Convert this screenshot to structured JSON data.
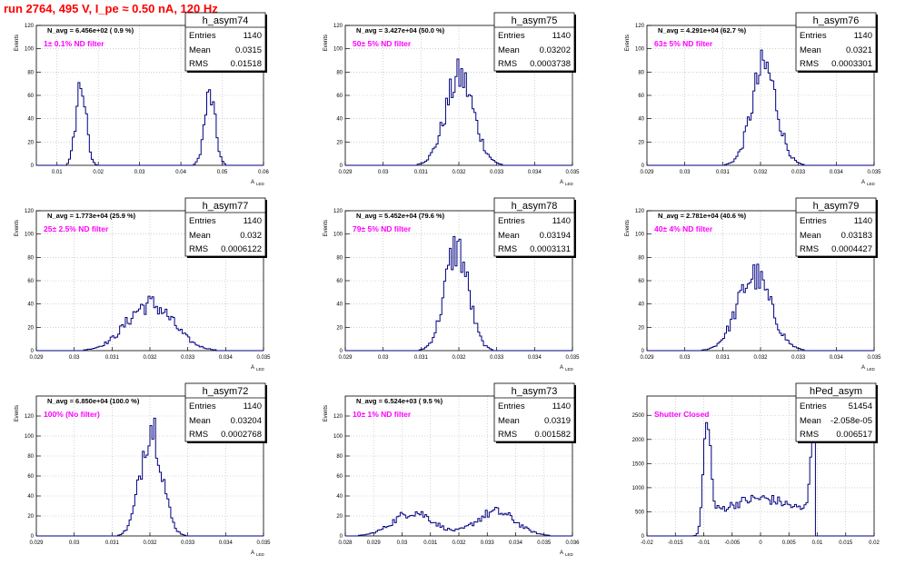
{
  "title": "run 2764,   495 V, I_pe ≈ 0.50 nA, 120 Hz",
  "colors": {
    "hist": "#000080",
    "magenta": "#ff00ff",
    "title": "#ff0000",
    "grid": "#b4b4b4"
  },
  "stats_labels": {
    "entries": "Entries",
    "mean": "Mean",
    "rms": "RMS"
  },
  "chart_data": [
    {
      "type": "histogram",
      "name": "h_asym74",
      "nlabel": "N_avg = 6.456e+02 ( 0.9 %)",
      "filter": "1± 0.1% ND filter",
      "ylabel": "Events",
      "xlabel": "A",
      "xlabel_sub": "LED",
      "xlim": [
        0.005,
        0.06
      ],
      "ylim": [
        0,
        120
      ],
      "xticks": [
        0.01,
        0.02,
        0.03,
        0.04,
        0.05,
        0.06
      ],
      "xticklabels": [
        "0.01",
        "0.02",
        "0.03",
        "0.04",
        "0.05",
        "0.06"
      ],
      "yticks": [
        0,
        20,
        40,
        60,
        80,
        100,
        120
      ],
      "stats": {
        "entries": "1140",
        "mean": "0.0315",
        "rms": "0.01518"
      },
      "peaks": [
        {
          "mu": 0.0158,
          "sigma": 0.0012,
          "amp": 70
        },
        {
          "mu": 0.047,
          "sigma": 0.0013,
          "amp": 60
        }
      ],
      "bins": 120
    },
    {
      "type": "histogram",
      "name": "h_asym75",
      "nlabel": "N_avg = 3.427e+04 (50.0 %)",
      "filter": "50± 5% ND filter",
      "ylabel": "Events",
      "xlabel": "A",
      "xlabel_sub": "LED",
      "xlim": [
        0.029,
        0.035
      ],
      "ylim": [
        0,
        120
      ],
      "xticks": [
        0.029,
        0.03,
        0.031,
        0.032,
        0.033,
        0.034,
        0.035
      ],
      "xticklabels": [
        "0.029",
        "0.03",
        "0.031",
        "0.032",
        "0.033",
        "0.034",
        "0.035"
      ],
      "yticks": [
        0,
        20,
        40,
        60,
        80,
        100,
        120
      ],
      "stats": {
        "entries": "1140",
        "mean": "0.03202",
        "rms": "0.0003738"
      },
      "peaks": [
        {
          "mu": 0.03202,
          "sigma": 0.00037,
          "amp": 76
        }
      ],
      "bins": 120
    },
    {
      "type": "histogram",
      "name": "h_asym76",
      "nlabel": "N_avg = 4.291e+04 (62.7 %)",
      "filter": "63± 5% ND filter",
      "ylabel": "Events",
      "xlabel": "A",
      "xlabel_sub": "LED",
      "xlim": [
        0.029,
        0.035
      ],
      "ylim": [
        0,
        120
      ],
      "xticks": [
        0.029,
        0.03,
        0.031,
        0.032,
        0.033,
        0.034,
        0.035
      ],
      "xticklabels": [
        "0.029",
        "0.03",
        "0.031",
        "0.032",
        "0.033",
        "0.034",
        "0.035"
      ],
      "yticks": [
        0,
        20,
        40,
        60,
        80,
        100,
        120
      ],
      "stats": {
        "entries": "1140",
        "mean": "0.0321",
        "rms": "0.0003301"
      },
      "peaks": [
        {
          "mu": 0.0321,
          "sigma": 0.00033,
          "amp": 84
        }
      ],
      "bins": 120
    },
    {
      "type": "histogram",
      "name": "h_asym77",
      "nlabel": "N_avg = 1.773e+04 (25.9 %)",
      "filter": "25± 2.5% ND filter",
      "ylabel": "Events",
      "xlabel": "A",
      "xlabel_sub": "LED",
      "xlim": [
        0.029,
        0.035
      ],
      "ylim": [
        0,
        120
      ],
      "xticks": [
        0.029,
        0.03,
        0.031,
        0.032,
        0.033,
        0.034,
        0.035
      ],
      "xticklabels": [
        "0.029",
        "0.03",
        "0.031",
        "0.032",
        "0.033",
        "0.034",
        "0.035"
      ],
      "yticks": [
        0,
        20,
        40,
        60,
        80,
        100,
        120
      ],
      "stats": {
        "entries": "1140",
        "mean": "0.032",
        "rms": "0.0006122"
      },
      "peaks": [
        {
          "mu": 0.032,
          "sigma": 0.00061,
          "amp": 40
        }
      ],
      "bins": 120
    },
    {
      "type": "histogram",
      "name": "h_asym78",
      "nlabel": "N_avg = 5.452e+04 (79.6 %)",
      "filter": "79± 5% ND filter",
      "ylabel": "Events",
      "xlabel": "A",
      "xlabel_sub": "LED",
      "xlim": [
        0.029,
        0.035
      ],
      "ylim": [
        0,
        120
      ],
      "xticks": [
        0.029,
        0.03,
        0.031,
        0.032,
        0.033,
        0.034,
        0.035
      ],
      "xticklabels": [
        "0.029",
        "0.03",
        "0.031",
        "0.032",
        "0.033",
        "0.034",
        "0.035"
      ],
      "yticks": [
        0,
        20,
        40,
        60,
        80,
        100,
        120
      ],
      "stats": {
        "entries": "1140",
        "mean": "0.03194",
        "rms": "0.0003131"
      },
      "peaks": [
        {
          "mu": 0.03194,
          "sigma": 0.00031,
          "amp": 88
        }
      ],
      "bins": 120
    },
    {
      "type": "histogram",
      "name": "h_asym79",
      "nlabel": "N_avg = 2.781e+04 (40.6 %)",
      "filter": "40± 4% ND filter",
      "ylabel": "Events",
      "xlabel": "A",
      "xlabel_sub": "LED",
      "xlim": [
        0.029,
        0.035
      ],
      "ylim": [
        0,
        120
      ],
      "xticks": [
        0.029,
        0.03,
        0.031,
        0.032,
        0.033,
        0.034,
        0.035
      ],
      "xticklabels": [
        "0.029",
        "0.03",
        "0.031",
        "0.032",
        "0.033",
        "0.034",
        "0.035"
      ],
      "yticks": [
        0,
        20,
        40,
        60,
        80,
        100,
        120
      ],
      "stats": {
        "entries": "1140",
        "mean": "0.03183",
        "rms": "0.0004427"
      },
      "peaks": [
        {
          "mu": 0.03183,
          "sigma": 0.00044,
          "amp": 64
        }
      ],
      "bins": 120
    },
    {
      "type": "histogram",
      "name": "h_asym72",
      "nlabel": "N_avg = 6.850e+04 (100.0 %)",
      "filter": "100% (No filter)",
      "ylabel": "Events",
      "xlabel": "A",
      "xlabel_sub": "LED",
      "xlim": [
        0.029,
        0.035
      ],
      "ylim": [
        0,
        140
      ],
      "xticks": [
        0.029,
        0.03,
        0.031,
        0.032,
        0.033,
        0.034,
        0.035
      ],
      "xticklabels": [
        "0.029",
        "0.03",
        "0.031",
        "0.032",
        "0.033",
        "0.034",
        "0.035"
      ],
      "yticks": [
        0,
        20,
        40,
        60,
        80,
        100,
        120
      ],
      "stats": {
        "entries": "1140",
        "mean": "0.03204",
        "rms": "0.0002768"
      },
      "peaks": [
        {
          "mu": 0.03204,
          "sigma": 0.00028,
          "amp": 112
        }
      ],
      "bins": 120
    },
    {
      "type": "histogram",
      "name": "h_asym73",
      "nlabel": "N_avg = 6.524e+03 ( 9.5 %)",
      "filter": "10± 1% ND filter",
      "ylabel": "Events",
      "xlabel": "A",
      "xlabel_sub": "LED",
      "xlim": [
        0.028,
        0.036
      ],
      "ylim": [
        0,
        140
      ],
      "xticks": [
        0.028,
        0.029,
        0.03,
        0.031,
        0.032,
        0.033,
        0.034,
        0.035,
        0.036
      ],
      "xticklabels": [
        "0.028",
        "0.029",
        "0.03",
        "0.031",
        "0.032",
        "0.033",
        "0.034",
        "0.035",
        "0.036"
      ],
      "yticks": [
        0,
        20,
        40,
        60,
        80,
        100,
        120
      ],
      "stats": {
        "entries": "1140",
        "mean": "0.0319",
        "rms": "0.001582"
      },
      "peaks": [
        {
          "mu": 0.0304,
          "sigma": 0.0007,
          "amp": 24
        },
        {
          "mu": 0.0333,
          "sigma": 0.0007,
          "amp": 24
        }
      ],
      "bins": 120
    },
    {
      "type": "histogram",
      "name": "hPed_asym",
      "nlabel": "",
      "filter": "Shutter Closed",
      "ylabel": "",
      "xlabel": "",
      "xlabel_sub": "",
      "xlim": [
        -0.02,
        0.02
      ],
      "ylim": [
        0,
        2900
      ],
      "xticks": [
        -0.02,
        -0.015,
        -0.01,
        -0.005,
        0,
        0.005,
        0.01,
        0.015,
        0.02
      ],
      "xticklabels": [
        "-0.02",
        "-0.015",
        "-0.01",
        "-0.005",
        "0",
        "0.005",
        "0.01",
        "0.015",
        "0.02"
      ],
      "yticks": [
        0,
        500,
        1000,
        1500,
        2000,
        2500
      ],
      "stats": {
        "entries": "51454",
        "mean": "-2.058e-05",
        "rms": "0.006517"
      },
      "pedestal": true,
      "bins": 120
    }
  ]
}
